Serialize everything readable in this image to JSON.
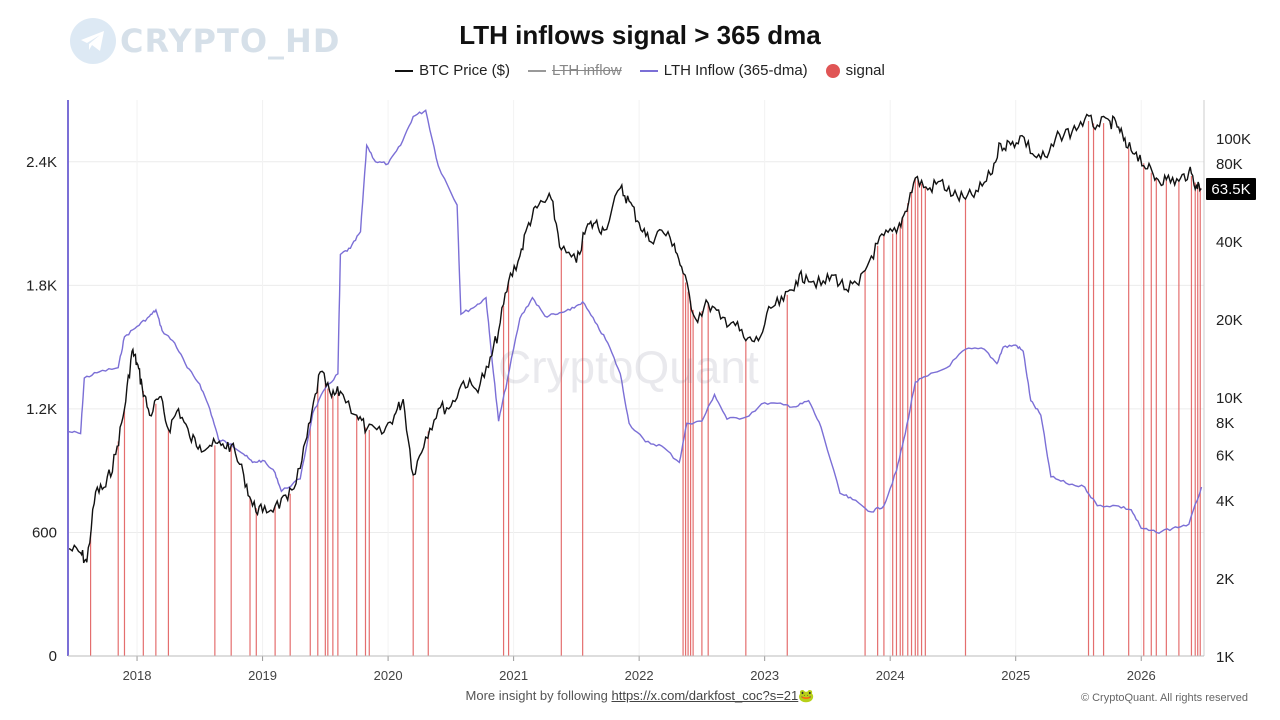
{
  "logo": {
    "text": "CRYPTO_HD",
    "icon": "telegram-icon"
  },
  "watermark": "CryptoQuant",
  "footer": {
    "prefix": "More insight by following ",
    "link": "https://x.com/darkfost_coc?s=21",
    "emoji": "🐸",
    "copyright": "© CryptoQuant. All rights reserved"
  },
  "colors": {
    "price": "#111111",
    "inflow": "#8a8a8a",
    "dma": "#7b6fd6",
    "signal": "#e05555"
  },
  "chart_data": {
    "type": "line",
    "title": "LTH inflows signal > 365 dma",
    "legend_position": "top-center",
    "legend": [
      {
        "name": "BTC Price ($)",
        "style": "line",
        "color": "#111111",
        "hidden": false
      },
      {
        "name": "LTH inflow",
        "style": "line",
        "color": "#8a8a8a",
        "hidden": true
      },
      {
        "name": "LTH Inflow (365-dma)",
        "style": "line",
        "color": "#7b6fd6",
        "hidden": false
      },
      {
        "name": "signal",
        "style": "dot",
        "color": "#e05555",
        "hidden": false
      }
    ],
    "x_axis": {
      "type": "time",
      "range": [
        2017.45,
        2026.5
      ],
      "ticks": [
        "2018",
        "2019",
        "2020",
        "2021",
        "2022",
        "2023",
        "2024",
        "2025",
        "2026"
      ]
    },
    "y_left": {
      "range": [
        0,
        2700
      ],
      "ticks": [
        0,
        600,
        1200,
        1800,
        2400
      ],
      "tick_labels": [
        "0",
        "600",
        "1.2K",
        "1.8K",
        "2.4K"
      ]
    },
    "y_right": {
      "scale": "log",
      "range": [
        1000,
        140000
      ],
      "ticks": [
        1000,
        2000,
        4000,
        6000,
        8000,
        10000,
        20000,
        40000,
        80000,
        100000
      ],
      "tick_labels": [
        "1K",
        "2K",
        "4K",
        "6K",
        "8K",
        "10K",
        "20K",
        "40K",
        "80K",
        "100K"
      ]
    },
    "current_price_label": "63.5K",
    "current_price": 63500,
    "grid": true,
    "series": [
      {
        "name": "BTC Price ($)",
        "axis": "right",
        "points": [
          [
            2017.45,
            2600
          ],
          [
            2017.55,
            2500
          ],
          [
            2017.6,
            2300
          ],
          [
            2017.67,
            4300
          ],
          [
            2017.75,
            4500
          ],
          [
            2017.83,
            6000
          ],
          [
            2017.9,
            9000
          ],
          [
            2017.96,
            15000
          ],
          [
            2018.0,
            13500
          ],
          [
            2018.04,
            11000
          ],
          [
            2018.1,
            8500
          ],
          [
            2018.18,
            10000
          ],
          [
            2018.25,
            7500
          ],
          [
            2018.33,
            9000
          ],
          [
            2018.42,
            7000
          ],
          [
            2018.5,
            6500
          ],
          [
            2018.58,
            6500
          ],
          [
            2018.67,
            6500
          ],
          [
            2018.75,
            6500
          ],
          [
            2018.85,
            5000
          ],
          [
            2018.92,
            3800
          ],
          [
            2019.0,
            3600
          ],
          [
            2019.1,
            3800
          ],
          [
            2019.2,
            4000
          ],
          [
            2019.3,
            5300
          ],
          [
            2019.38,
            8000
          ],
          [
            2019.46,
            12500
          ],
          [
            2019.55,
            10000
          ],
          [
            2019.62,
            10500
          ],
          [
            2019.75,
            8500
          ],
          [
            2019.83,
            7500
          ],
          [
            2019.95,
            7200
          ],
          [
            2020.05,
            8500
          ],
          [
            2020.12,
            9800
          ],
          [
            2020.2,
            5000
          ],
          [
            2020.3,
            7000
          ],
          [
            2020.4,
            9000
          ],
          [
            2020.5,
            9200
          ],
          [
            2020.6,
            11500
          ],
          [
            2020.7,
            10700
          ],
          [
            2020.8,
            13000
          ],
          [
            2020.88,
            18000
          ],
          [
            2020.96,
            28000
          ],
          [
            2021.05,
            35000
          ],
          [
            2021.12,
            47000
          ],
          [
            2021.2,
            55000
          ],
          [
            2021.3,
            58000
          ],
          [
            2021.38,
            37000
          ],
          [
            2021.5,
            33000
          ],
          [
            2021.58,
            45000
          ],
          [
            2021.65,
            47000
          ],
          [
            2021.72,
            44000
          ],
          [
            2021.85,
            64000
          ],
          [
            2021.92,
            57000
          ],
          [
            2022.0,
            47000
          ],
          [
            2022.08,
            40000
          ],
          [
            2022.18,
            44000
          ],
          [
            2022.28,
            39000
          ],
          [
            2022.35,
            30000
          ],
          [
            2022.45,
            20000
          ],
          [
            2022.55,
            23000
          ],
          [
            2022.65,
            20000
          ],
          [
            2022.75,
            19500
          ],
          [
            2022.85,
            16500
          ],
          [
            2022.95,
            16500
          ],
          [
            2023.05,
            22000
          ],
          [
            2023.15,
            23500
          ],
          [
            2023.25,
            28000
          ],
          [
            2023.33,
            29500
          ],
          [
            2023.45,
            27000
          ],
          [
            2023.55,
            29500
          ],
          [
            2023.65,
            26000
          ],
          [
            2023.75,
            27000
          ],
          [
            2023.85,
            35000
          ],
          [
            2023.95,
            42000
          ],
          [
            2024.05,
            43000
          ],
          [
            2024.12,
            52000
          ],
          [
            2024.2,
            70000
          ],
          [
            2024.3,
            63000
          ],
          [
            2024.4,
            68000
          ],
          [
            2024.5,
            60000
          ],
          [
            2024.6,
            58000
          ],
          [
            2024.7,
            62000
          ],
          [
            2024.8,
            72000
          ],
          [
            2024.88,
            95000
          ],
          [
            2024.96,
            94000
          ],
          [
            2025.05,
            102000
          ],
          [
            2025.15,
            85000
          ],
          [
            2025.25,
            84000
          ],
          [
            2025.35,
            103000
          ],
          [
            2025.45,
            106000
          ],
          [
            2025.55,
            118000
          ],
          [
            2025.65,
            112000
          ],
          [
            2025.75,
            116000
          ],
          [
            2025.82,
            110000
          ],
          [
            2025.88,
            92000
          ],
          [
            2025.96,
            88000
          ],
          [
            2026.05,
            76000
          ],
          [
            2026.12,
            70000
          ],
          [
            2026.2,
            69000
          ],
          [
            2026.3,
            68000
          ],
          [
            2026.38,
            74000
          ],
          [
            2026.44,
            66000
          ],
          [
            2026.48,
            63500
          ]
        ]
      },
      {
        "name": "LTH Inflow (365-dma)",
        "axis": "left",
        "points": [
          [
            2017.45,
            1090
          ],
          [
            2017.55,
            1080
          ],
          [
            2017.58,
            1350
          ],
          [
            2017.7,
            1380
          ],
          [
            2017.85,
            1400
          ],
          [
            2017.9,
            1550
          ],
          [
            2018.0,
            1600
          ],
          [
            2018.1,
            1650
          ],
          [
            2018.15,
            1680
          ],
          [
            2018.2,
            1580
          ],
          [
            2018.3,
            1520
          ],
          [
            2018.4,
            1400
          ],
          [
            2018.5,
            1320
          ],
          [
            2018.58,
            1200
          ],
          [
            2018.65,
            1050
          ],
          [
            2018.75,
            1030
          ],
          [
            2018.85,
            980
          ],
          [
            2018.92,
            940
          ],
          [
            2019.0,
            950
          ],
          [
            2019.1,
            890
          ],
          [
            2019.15,
            800
          ],
          [
            2019.3,
            860
          ],
          [
            2019.4,
            1180
          ],
          [
            2019.5,
            1300
          ],
          [
            2019.6,
            1370
          ],
          [
            2019.62,
            1950
          ],
          [
            2019.7,
            1980
          ],
          [
            2019.78,
            2060
          ],
          [
            2019.83,
            2480
          ],
          [
            2019.9,
            2400
          ],
          [
            2020.0,
            2390
          ],
          [
            2020.1,
            2480
          ],
          [
            2020.2,
            2620
          ],
          [
            2020.3,
            2650
          ],
          [
            2020.4,
            2380
          ],
          [
            2020.55,
            2190
          ],
          [
            2020.58,
            1660
          ],
          [
            2020.7,
            1700
          ],
          [
            2020.78,
            1740
          ],
          [
            2020.82,
            1490
          ],
          [
            2020.88,
            1140
          ],
          [
            2020.95,
            1340
          ],
          [
            2021.05,
            1640
          ],
          [
            2021.15,
            1740
          ],
          [
            2021.25,
            1650
          ],
          [
            2021.35,
            1660
          ],
          [
            2021.45,
            1680
          ],
          [
            2021.55,
            1720
          ],
          [
            2021.65,
            1620
          ],
          [
            2021.75,
            1520
          ],
          [
            2021.85,
            1370
          ],
          [
            2021.92,
            1130
          ],
          [
            2022.05,
            1040
          ],
          [
            2022.18,
            1020
          ],
          [
            2022.32,
            940
          ],
          [
            2022.38,
            1130
          ],
          [
            2022.5,
            1140
          ],
          [
            2022.6,
            1270
          ],
          [
            2022.7,
            1150
          ],
          [
            2022.85,
            1160
          ],
          [
            2023.0,
            1230
          ],
          [
            2023.15,
            1220
          ],
          [
            2023.25,
            1210
          ],
          [
            2023.35,
            1240
          ],
          [
            2023.45,
            1110
          ],
          [
            2023.6,
            790
          ],
          [
            2023.7,
            760
          ],
          [
            2023.85,
            700
          ],
          [
            2023.95,
            730
          ],
          [
            2024.05,
            900
          ],
          [
            2024.12,
            1080
          ],
          [
            2024.2,
            1330
          ],
          [
            2024.3,
            1360
          ],
          [
            2024.45,
            1400
          ],
          [
            2024.6,
            1490
          ],
          [
            2024.75,
            1490
          ],
          [
            2024.85,
            1420
          ],
          [
            2024.9,
            1500
          ],
          [
            2025.0,
            1510
          ],
          [
            2025.06,
            1480
          ],
          [
            2025.12,
            1240
          ],
          [
            2025.2,
            1170
          ],
          [
            2025.28,
            870
          ],
          [
            2025.4,
            840
          ],
          [
            2025.55,
            820
          ],
          [
            2025.65,
            730
          ],
          [
            2025.8,
            730
          ],
          [
            2025.92,
            710
          ],
          [
            2026.0,
            620
          ],
          [
            2026.12,
            600
          ],
          [
            2026.25,
            620
          ],
          [
            2026.38,
            640
          ],
          [
            2026.48,
            820
          ]
        ]
      }
    ],
    "signal_dates": [
      2017.63,
      2017.85,
      2017.9,
      2018.05,
      2018.15,
      2018.25,
      2018.62,
      2018.75,
      2018.9,
      2018.95,
      2019.1,
      2019.22,
      2019.38,
      2019.44,
      2019.5,
      2019.52,
      2019.56,
      2019.6,
      2019.75,
      2019.82,
      2019.85,
      2020.2,
      2020.32,
      2020.92,
      2020.96,
      2021.38,
      2021.55,
      2022.35,
      2022.37,
      2022.39,
      2022.41,
      2022.43,
      2022.5,
      2022.55,
      2022.85,
      2023.18,
      2023.8,
      2023.9,
      2023.95,
      2024.02,
      2024.05,
      2024.08,
      2024.1,
      2024.14,
      2024.17,
      2024.2,
      2024.22,
      2024.25,
      2024.28,
      2024.6,
      2025.58,
      2025.62,
      2025.7,
      2025.9,
      2026.02,
      2026.08,
      2026.12,
      2026.2,
      2026.3,
      2026.4,
      2026.43,
      2026.45,
      2026.47
    ]
  }
}
